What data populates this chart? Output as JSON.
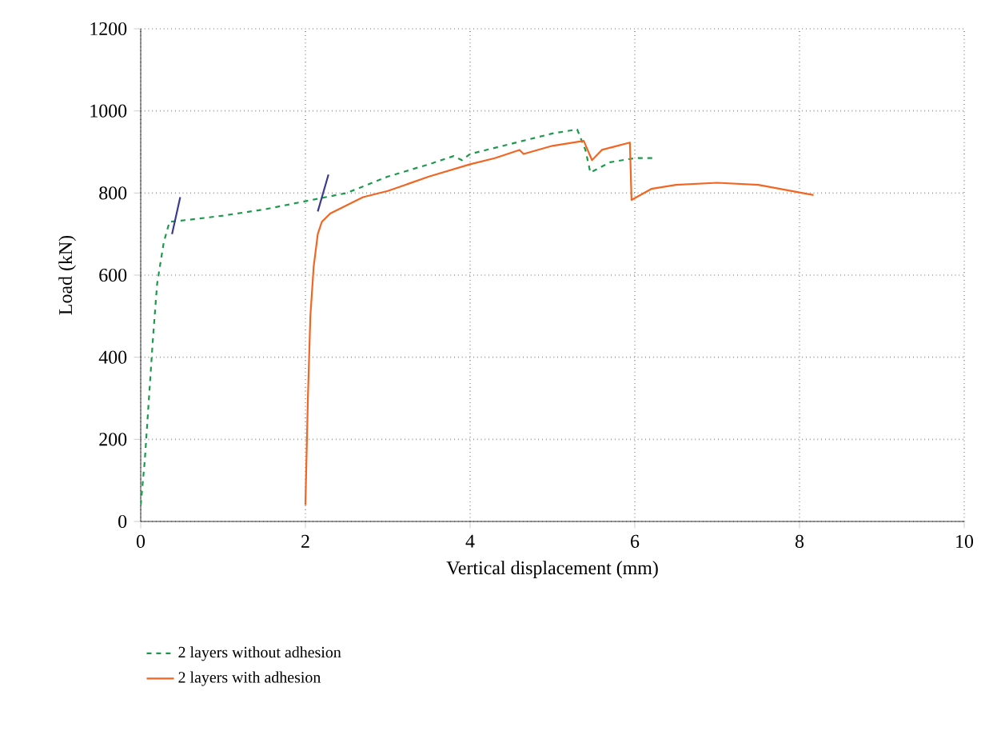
{
  "chart_data": {
    "type": "line",
    "xlabel": "Vertical displacement (mm)",
    "ylabel": "Load (kN)",
    "xlim": [
      0,
      10
    ],
    "ylim": [
      0,
      1200
    ],
    "xticks": [
      0,
      2,
      4,
      6,
      8,
      10
    ],
    "yticks": [
      0,
      200,
      400,
      600,
      800,
      1000,
      1200
    ],
    "grid": true,
    "legend": "bottom",
    "series": [
      {
        "name": "2 layers without adhesion",
        "color": "#1a9a4a",
        "line_style": "dashed",
        "x": [
          0,
          0.05,
          0.1,
          0.15,
          0.2,
          0.28,
          0.35,
          0.6,
          1,
          1.5,
          2,
          2.5,
          3,
          3.5,
          3.8,
          3.9,
          4,
          4.5,
          5,
          5.3,
          5.4,
          5.46,
          5.7,
          6.0,
          6.25
        ],
        "values": [
          40,
          150,
          300,
          450,
          580,
          680,
          730,
          735,
          745,
          760,
          780,
          800,
          840,
          870,
          890,
          880,
          895,
          920,
          945,
          955,
          905,
          850,
          875,
          885,
          885
        ]
      },
      {
        "name": "2 layers with adhesion",
        "color": "#f26522",
        "line_style": "solid",
        "x": [
          2,
          2.03,
          2.06,
          2.1,
          2.15,
          2.2,
          2.3,
          2.5,
          2.7,
          3,
          3.5,
          4,
          4.3,
          4.6,
          4.65,
          5,
          5.38,
          5.48,
          5.6,
          5.94,
          5.96,
          6.2,
          6.5,
          7,
          7.5,
          8.17
        ],
        "values": [
          40,
          300,
          500,
          620,
          700,
          730,
          750,
          770,
          790,
          805,
          840,
          870,
          885,
          905,
          895,
          915,
          927,
          880,
          905,
          923,
          783,
          810,
          820,
          825,
          820,
          795
        ]
      },
      {
        "color": "#3b3b8f",
        "line_style": "solid",
        "x": [
          0.38,
          0.48,
          null,
          2.15,
          2.28
        ],
        "values": [
          700,
          790,
          null,
          755,
          845
        ]
      }
    ]
  }
}
